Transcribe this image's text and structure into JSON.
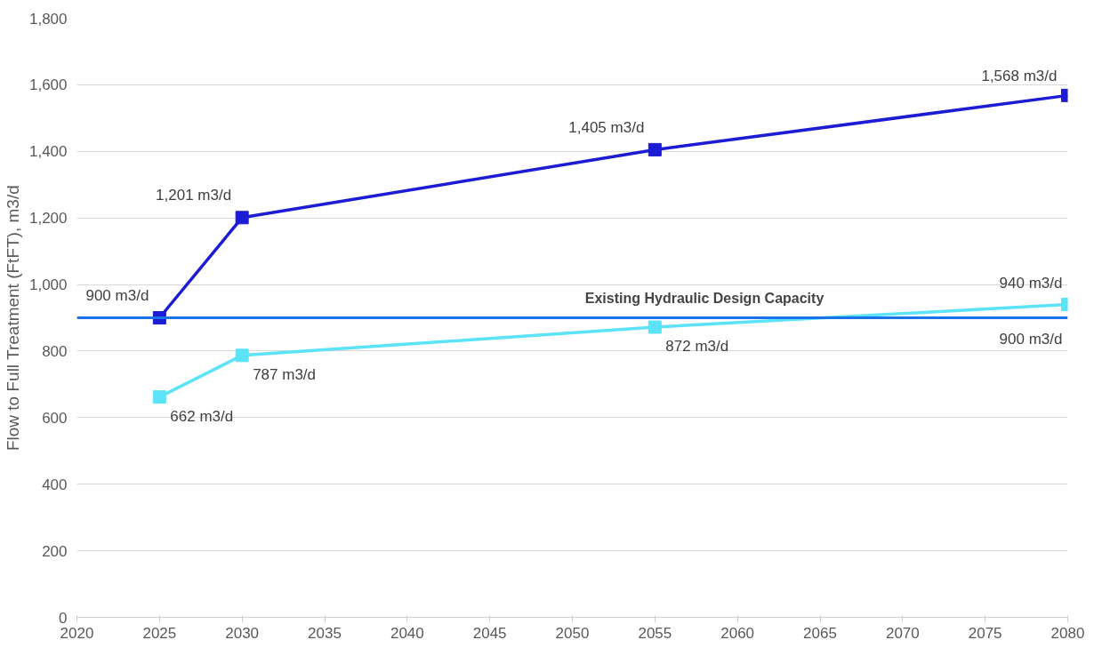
{
  "chart_data": {
    "type": "line",
    "ylabel": "Flow to Full Treatment (FtFT), m3/d",
    "x": [
      2025,
      2030,
      2055,
      2080
    ],
    "series": [
      {
        "color": "#1c1cd4",
        "values": [
          900,
          1201,
          1405,
          1568
        ],
        "value_labels": [
          "900 m3/d",
          "1,201 m3/d",
          "1,405 m3/d",
          "1,568 m3/d"
        ]
      },
      {
        "color": "#5ce3f8",
        "values": [
          662,
          787,
          872,
          940
        ],
        "value_labels": [
          "662 m3/d",
          "787 m3/d",
          "872 m3/d",
          "940 m3/d"
        ]
      }
    ],
    "marker": "square",
    "line_style": "solid",
    "grid": "y",
    "xlim": [
      2020,
      2080
    ],
    "xticks": [
      2020,
      2025,
      2030,
      2035,
      2040,
      2045,
      2050,
      2055,
      2060,
      2065,
      2070,
      2075,
      2080
    ],
    "ylim": [
      0,
      1800
    ],
    "yticks": [
      0,
      {
        "value": 200,
        "label": "200"
      },
      {
        "value": 400,
        "label": "400"
      },
      {
        "value": 600,
        "label": "600"
      },
      {
        "value": 800,
        "label": "800"
      },
      {
        "value": 1000,
        "label": "1,000"
      },
      {
        "value": 1200,
        "label": "1,200"
      },
      {
        "value": 1400,
        "label": "1,400"
      },
      {
        "value": 1600,
        "label": "1,600"
      },
      {
        "value": 1800,
        "label": "1,800"
      }
    ],
    "ref_lines": [
      {
        "axis": "y",
        "value": 900,
        "label": "Existing Hydraulic Design Capacity",
        "color": "#1a73e8",
        "line_style": "solid"
      }
    ],
    "annotations": [
      {
        "text": "900 m3/d",
        "x": 2080,
        "y": 900
      }
    ]
  }
}
